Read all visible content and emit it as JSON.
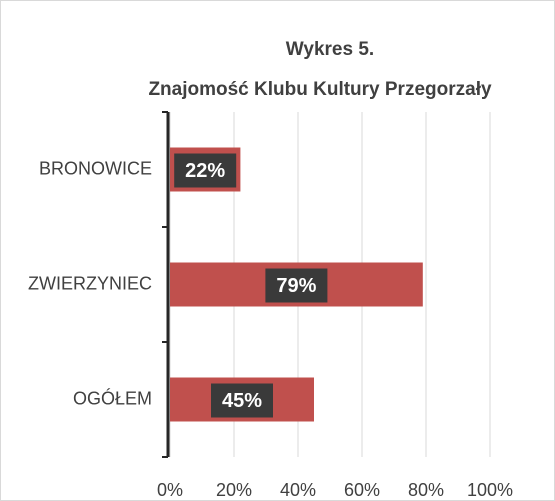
{
  "chart_data": {
    "type": "bar",
    "orientation": "horizontal",
    "title": "Wykres 5.",
    "subtitle": "Znajomość  Klubu Kultury Przegorzały",
    "categories": [
      "BRONOWICE",
      "ZWIERZYNIEC",
      "OGÓŁEM"
    ],
    "values": [
      22,
      79,
      45
    ],
    "value_labels": [
      "22%",
      "79%",
      "45%"
    ],
    "color": "#c0504d",
    "xlim": [
      0,
      100
    ],
    "xticks": [
      {
        "value": 0,
        "label": "0%"
      },
      {
        "value": 20,
        "label": "20%"
      },
      {
        "value": 40,
        "label": "40%"
      },
      {
        "value": 60,
        "label": "60%"
      },
      {
        "value": 80,
        "label": "80%"
      },
      {
        "value": 100,
        "label": "100%"
      }
    ],
    "grid": true
  }
}
